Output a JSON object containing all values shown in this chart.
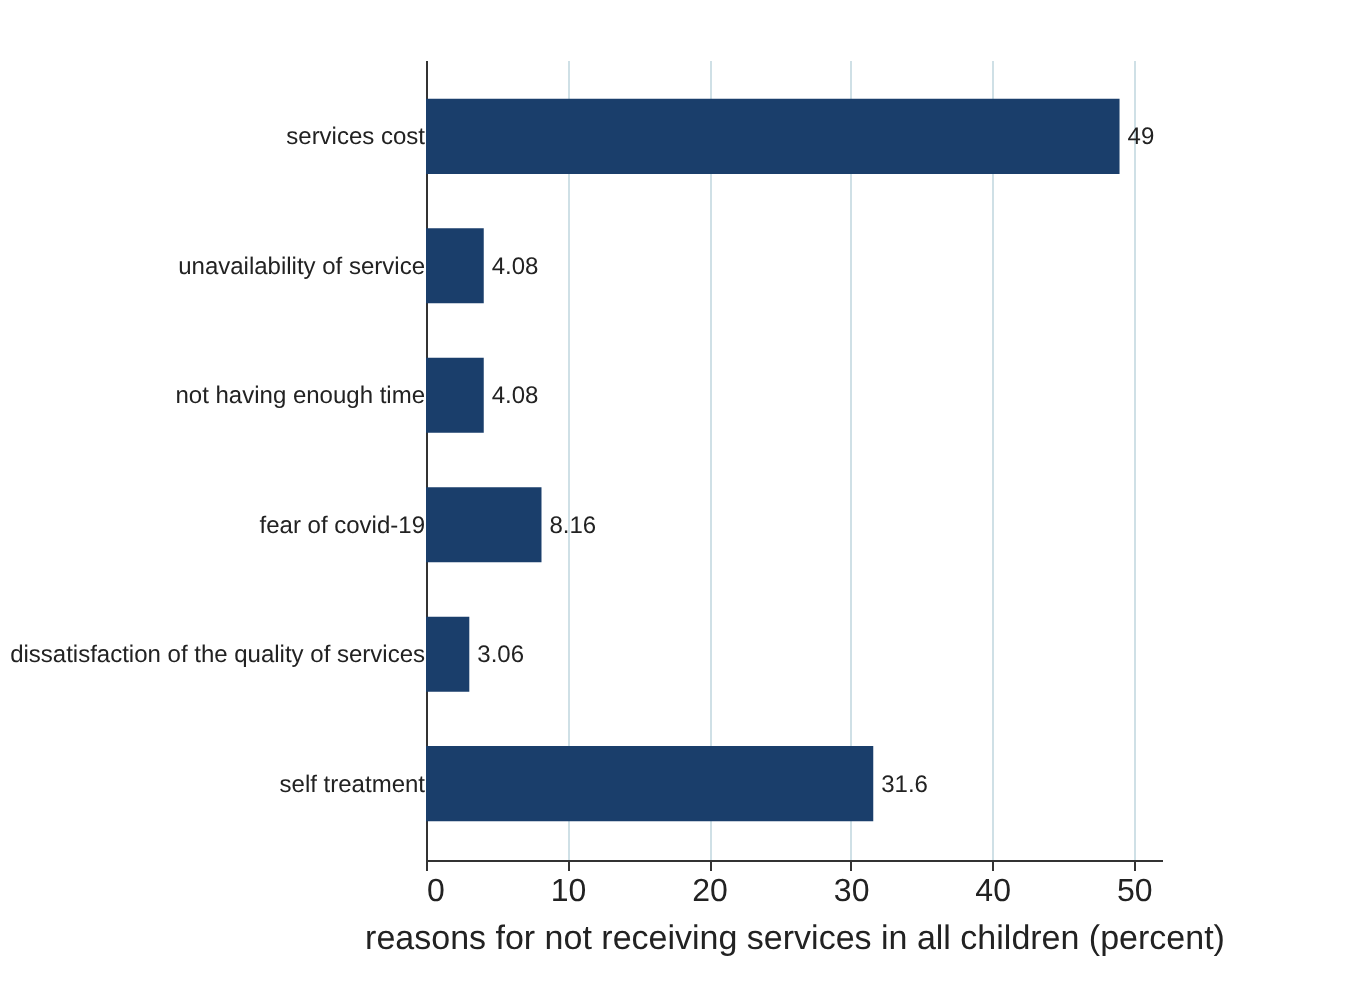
{
  "chart_data": {
    "type": "bar",
    "orientation": "horizontal",
    "categories": [
      "services cost",
      "unavailability of service",
      "not having enough time",
      "fear of  covid-19",
      "dissatisfaction of the quality of services",
      "self treatment"
    ],
    "values": [
      49,
      4.08,
      4.08,
      8.16,
      3.06,
      31.6
    ],
    "color": "#1a3e6b",
    "xlabel": "reasons for not receiving services in all children (percent)",
    "xlim": [
      0,
      52
    ],
    "xticks": [
      0,
      10,
      20,
      30,
      40,
      50
    ],
    "grid": "x",
    "data_labels": true
  }
}
